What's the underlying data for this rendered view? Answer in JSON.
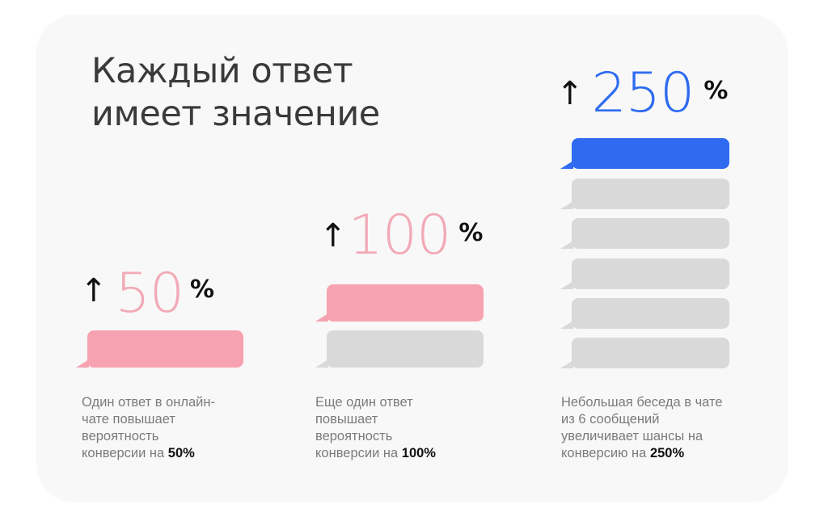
{
  "heading": {
    "line1": "Каждый ответ",
    "line2": "имеет значение"
  },
  "colors": {
    "pink": "#f7a2b0",
    "blue": "#2e6bf0",
    "gray": "#d9d9d9"
  },
  "columns": [
    {
      "arrow": "↑",
      "value": "50",
      "percent": "%",
      "caption_lines": [
        "Один ответ в онлайн-",
        "чате повышает",
        "вероятность"
      ],
      "caption_last": "конверсии на ",
      "caption_bold": "50%"
    },
    {
      "arrow": "↑",
      "value": "100",
      "percent": "%",
      "caption_lines": [
        "Еще один ответ",
        "повышает",
        "вероятность"
      ],
      "caption_last": "конверсии на ",
      "caption_bold": "100%"
    },
    {
      "arrow": "↑",
      "value": "250",
      "percent": "%",
      "caption_lines": [
        "Небольшая беседа в чате",
        "из 6 сообщений",
        "увеличивает шансы на"
      ],
      "caption_last": "конверсию на ",
      "caption_bold": "250%"
    }
  ]
}
